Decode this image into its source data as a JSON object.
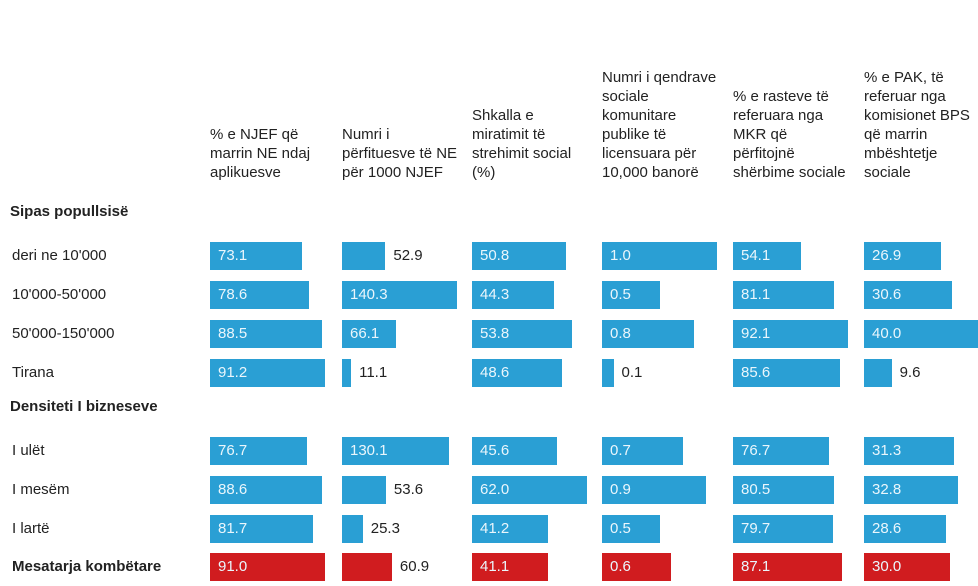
{
  "table": {
    "columns": [
      "% e NJEF që marrin NE ndaj aplikuesve",
      "Numri i përfituesve të NE për 1000 NJEF",
      "Shkalla e miratimit të strehimit social (%)",
      "Numri i qendrave sociale komunitare publike të licensuara për 10,000 banorë",
      "% e rasteve të referuara nga MKR që përfitojnë shërbime sociale",
      "% e PAK, të referuar nga komisionet BPS që marrin mbështetje sociale"
    ],
    "groups": [
      {
        "title": "Sipas popullsisë",
        "rows": [
          {
            "label": "deri ne 10'000",
            "values": [
              73.1,
              52.9,
              50.8,
              1.0,
              54.1,
              26.9
            ],
            "value_labels": [
              "73.1",
              "52.9",
              "50.8",
              "1.0",
              "54.1",
              "26.9"
            ]
          },
          {
            "label": "10'000-50'000",
            "values": [
              78.6,
              140.3,
              44.3,
              0.5,
              81.1,
              30.6
            ],
            "value_labels": [
              "78.6",
              "140.3",
              "44.3",
              "0.5",
              "81.1",
              "30.6"
            ]
          },
          {
            "label": "50'000-150'000",
            "values": [
              88.5,
              66.1,
              53.8,
              0.8,
              92.1,
              40.0
            ],
            "value_labels": [
              "88.5",
              "66.1",
              "53.8",
              "0.8",
              "92.1",
              "40.0"
            ]
          },
          {
            "label": "Tirana",
            "values": [
              91.2,
              11.1,
              48.6,
              0.1,
              85.6,
              9.6
            ],
            "value_labels": [
              "91.2",
              "11.1",
              "48.6",
              "0.1",
              "85.6",
              "9.6"
            ]
          }
        ]
      },
      {
        "title": "Densiteti I bizneseve",
        "rows": [
          {
            "label": "I ulët",
            "values": [
              76.7,
              130.1,
              45.6,
              0.7,
              76.7,
              31.3
            ],
            "value_labels": [
              "76.7",
              "130.1",
              "45.6",
              "0.7",
              "76.7",
              "31.3"
            ]
          },
          {
            "label": "I mesëm",
            "values": [
              88.6,
              53.6,
              62.0,
              0.9,
              80.5,
              32.8
            ],
            "value_labels": [
              "88.6",
              "53.6",
              "62.0",
              "0.9",
              "80.5",
              "32.8"
            ]
          },
          {
            "label": "I lartë",
            "values": [
              81.7,
              25.3,
              41.2,
              0.5,
              79.7,
              28.6
            ],
            "value_labels": [
              "81.7",
              "25.3",
              "41.2",
              "0.5",
              "79.7",
              "28.6"
            ]
          }
        ]
      }
    ],
    "total": {
      "label": "Mesatarja kombëtare",
      "values": [
        91.0,
        60.9,
        41.1,
        0.6,
        87.1,
        30.0
      ],
      "value_labels": [
        "91.0",
        "60.9",
        "41.1",
        "0.6",
        "87.1",
        "30.0"
      ]
    },
    "bar_color": "#2a9fd4",
    "total_color": "#d01c1f"
  }
}
